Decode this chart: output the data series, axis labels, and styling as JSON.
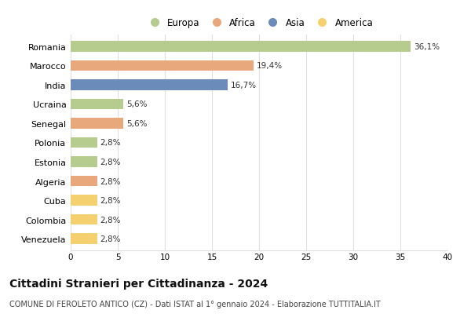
{
  "categories": [
    "Romania",
    "Marocco",
    "India",
    "Ucraina",
    "Senegal",
    "Polonia",
    "Estonia",
    "Algeria",
    "Cuba",
    "Colombia",
    "Venezuela"
  ],
  "values": [
    36.1,
    19.4,
    16.7,
    5.6,
    5.6,
    2.8,
    2.8,
    2.8,
    2.8,
    2.8,
    2.8
  ],
  "colors": [
    "#b5cc8e",
    "#e8a87c",
    "#6b8cba",
    "#b5cc8e",
    "#e8a87c",
    "#b5cc8e",
    "#b5cc8e",
    "#e8a87c",
    "#f5d06e",
    "#f5d06e",
    "#f5d06e"
  ],
  "labels": [
    "36,1%",
    "19,4%",
    "16,7%",
    "5,6%",
    "5,6%",
    "2,8%",
    "2,8%",
    "2,8%",
    "2,8%",
    "2,8%",
    "2,8%"
  ],
  "xlim": [
    0,
    40
  ],
  "xticks": [
    0,
    5,
    10,
    15,
    20,
    25,
    30,
    35,
    40
  ],
  "title": "Cittadini Stranieri per Cittadinanza - 2024",
  "subtitle": "COMUNE DI FEROLETO ANTICO (CZ) - Dati ISTAT al 1° gennaio 2024 - Elaborazione TUTTITALIA.IT",
  "legend_labels": [
    "Europa",
    "Africa",
    "Asia",
    "America"
  ],
  "legend_colors": [
    "#b5cc8e",
    "#e8a87c",
    "#6b8cba",
    "#f5d06e"
  ],
  "bg_color": "#ffffff",
  "plot_bg_color": "#ffffff",
  "grid_color": "#e0e0e0",
  "bar_height": 0.55,
  "label_fontsize": 7.5,
  "title_fontsize": 10,
  "subtitle_fontsize": 7,
  "category_fontsize": 8,
  "legend_fontsize": 8.5
}
